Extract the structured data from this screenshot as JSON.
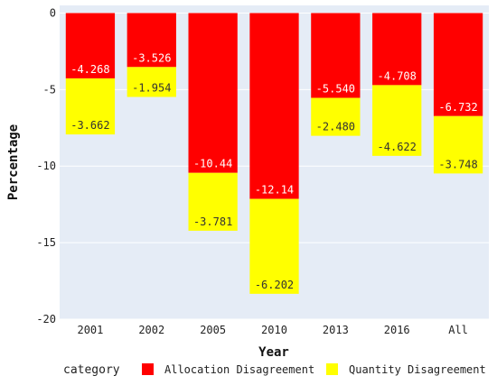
{
  "chart_data": {
    "type": "bar",
    "stacked": true,
    "title": "",
    "xlabel": "Year",
    "ylabel": "Percentage",
    "categories": [
      "2001",
      "2002",
      "2005",
      "2010",
      "2013",
      "2016",
      "All"
    ],
    "series": [
      {
        "name": "Allocation Disagreement",
        "values": [
          -4.268,
          -3.526,
          -10.44,
          -12.14,
          -5.54,
          -4.708,
          -6.732
        ],
        "labels": [
          "-4.268",
          "-3.526",
          "-10.44",
          "-12.14",
          "-5.540",
          "-4.708",
          "-6.732"
        ],
        "color": "#ff0000",
        "label_color": "#ffffff"
      },
      {
        "name": "Quantity Disagreement",
        "values": [
          -3.662,
          -1.954,
          -3.781,
          -6.202,
          -2.48,
          -4.622,
          -3.748
        ],
        "labels": [
          "-3.662",
          "-1.954",
          "-3.781",
          "-6.202",
          "-2.480",
          "-4.622",
          "-3.748"
        ],
        "color": "#ffff00",
        "label_color": "#333333"
      }
    ],
    "ylim": [
      -20,
      0.5
    ],
    "yticks": [
      0,
      -5,
      -10,
      -15,
      -20
    ],
    "ytick_labels": [
      "0",
      "-5",
      "-10",
      "-15",
      "-20"
    ],
    "grid": true,
    "plot_background": "#e5ecf6",
    "legend": {
      "title": "category",
      "position": "bottom"
    }
  }
}
